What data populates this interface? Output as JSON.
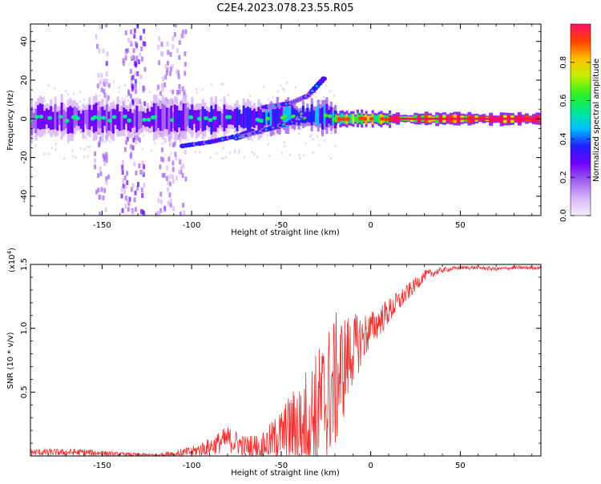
{
  "title": "C2E4.2023.078.23.55.R05",
  "chart_data": [
    {
      "type": "heatmap",
      "xlabel": "Height of straight line (km)",
      "ylabel": "Frequency (Hz)",
      "xlim": [
        -190,
        95
      ],
      "ylim": [
        -50,
        49
      ],
      "x_ticks": [
        -150,
        -100,
        -50,
        0,
        50
      ],
      "y_ticks": [
        -40,
        -20,
        0,
        20,
        40
      ],
      "colorbar": {
        "label": "Normalized spectral amplitude",
        "range": [
          0,
          1
        ],
        "ticks": [
          "0.0",
          "0.2",
          "0.4",
          "0.6",
          "0.8"
        ],
        "tick_values": [
          0,
          0.2,
          0.4,
          0.6,
          0.8
        ],
        "colors": [
          "#f4f0ff",
          "#d8b4f8",
          "#a060f0",
          "#7000ff",
          "#2020ff",
          "#00c0ff",
          "#00e890",
          "#30f020",
          "#c0f000",
          "#ffc000",
          "#ff4000",
          "#ff1060"
        ]
      },
      "signal_bands": [
        {
          "from_km": -190,
          "to_km": -110,
          "freq_center": 0,
          "freq_halfwidth": 5,
          "amplitude": 0.25
        },
        {
          "from_km": -110,
          "to_km": -60,
          "freq_center": 0,
          "freq_halfwidth": 5,
          "amplitude": 0.3
        },
        {
          "from_km": -60,
          "to_km": -20,
          "freq_center": 1,
          "freq_halfwidth": 4,
          "amplitude": 0.4
        },
        {
          "from_km": -20,
          "to_km": 10,
          "freq_center": 0,
          "freq_halfwidth": 2,
          "amplitude": 0.7
        },
        {
          "from_km": 10,
          "to_km": 95,
          "freq_center": 0,
          "freq_halfwidth": 1.5,
          "amplitude": 0.9
        }
      ],
      "side_branches": [
        {
          "x": [
            -105,
            -90,
            -75,
            -65
          ],
          "y": [
            -14,
            -12,
            -9,
            -6
          ]
        },
        {
          "x": [
            -75,
            -60,
            -45,
            -35
          ],
          "y": [
            -10,
            -6,
            -2,
            3
          ]
        },
        {
          "x": [
            -60,
            -45,
            -35,
            -25
          ],
          "y": [
            6,
            8,
            12,
            22
          ]
        }
      ],
      "noise_columns": [
        {
          "x": -150,
          "amplitude": 0.15
        },
        {
          "x": -135,
          "amplitude": 0.2
        },
        {
          "x": -130,
          "amplitude": 0.25
        },
        {
          "x": -115,
          "amplitude": 0.15
        },
        {
          "x": -107,
          "amplitude": 0.12
        }
      ]
    },
    {
      "type": "line",
      "xlabel": "Height of straight line (km)",
      "ylabel": "SNR (10 * v/v)",
      "y_multiplier": "(x10",
      "y_multiplier_exp": "4",
      "y_multiplier_close": ")",
      "xlim": [
        -190,
        95
      ],
      "ylim": [
        0,
        1.5
      ],
      "x_ticks": [
        -150,
        -100,
        -50,
        0,
        50
      ],
      "y_ticks": [
        "0.5",
        "1.0",
        "1.5"
      ],
      "y_tick_values": [
        0.5,
        1.0,
        1.5
      ],
      "color": "#f03030",
      "envelope": {
        "x": [
          -190,
          -160,
          -140,
          -120,
          -100,
          -90,
          -80,
          -70,
          -60,
          -50,
          -40,
          -30,
          -20,
          -10,
          0,
          10,
          20,
          30,
          40,
          50,
          60,
          70,
          80,
          95
        ],
        "base": [
          0.02,
          0.02,
          0.01,
          0.0,
          0.02,
          0.05,
          0.1,
          0.05,
          0.05,
          0.1,
          0.15,
          0.2,
          0.4,
          0.75,
          0.95,
          1.1,
          1.25,
          1.4,
          1.45,
          1.47,
          1.47,
          1.46,
          1.47,
          1.47
        ],
        "amplitude": [
          0.04,
          0.04,
          0.02,
          0.02,
          0.06,
          0.1,
          0.15,
          0.12,
          0.15,
          0.3,
          0.5,
          0.7,
          0.8,
          0.4,
          0.2,
          0.15,
          0.1,
          0.06,
          0.03,
          0.02,
          0.02,
          0.02,
          0.02,
          0.02
        ]
      }
    }
  ]
}
